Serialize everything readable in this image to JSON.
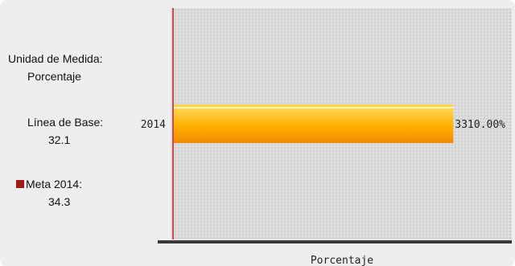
{
  "sidebar": {
    "unidad_label": "Unidad de Medida:",
    "unidad_value": "Porcentaje",
    "linea_label": "Línea de Base:",
    "linea_value": "32.1",
    "meta_label": "Meta 2014:",
    "meta_value": "34.3"
  },
  "colors": {
    "meta_marker": "#a01818",
    "bar_top": "#ffd24a",
    "bar_mid": "#ffb000",
    "bar_bottom": "#f28a00",
    "grid": "#bdbdbd",
    "baseline": "#c0504d"
  },
  "chart_data": {
    "type": "bar",
    "orientation": "horizontal",
    "categories": [
      "2014"
    ],
    "values": [
      3310.0
    ],
    "value_labels": [
      "3310.00%"
    ],
    "xlabel": "Porcentaje",
    "ylabel": "",
    "xlim": [
      0,
      4000
    ],
    "grid": true
  }
}
